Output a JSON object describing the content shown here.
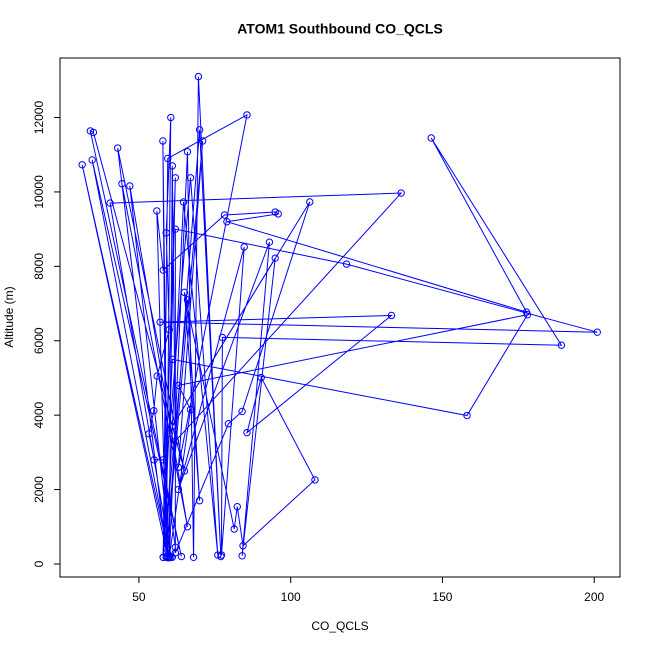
{
  "chart_data": {
    "type": "line",
    "title": "ATOM1 Southbound CO_QCLS",
    "x_label": "CO_QCLS",
    "y_label": "Altitude (m)",
    "x": [
      59.5,
      60,
      61,
      62,
      58,
      55,
      53.3,
      54.9,
      56,
      60,
      59,
      60.5,
      59,
      57.9,
      59.5,
      31.3,
      60,
      34.6,
      64,
      34,
      35,
      65,
      43,
      59,
      44.4,
      66,
      47,
      60.5,
      40.5,
      136.4,
      62,
      61,
      60,
      66,
      68,
      69.6,
      77,
      70,
      59,
      71,
      63,
      85.6,
      59.5,
      58,
      62,
      60,
      67,
      76,
      64.7,
      59,
      55.9,
      58,
      78.2,
      94.9,
      95.9,
      79,
      177.7,
      146.3,
      189.2,
      77.5,
      77.2,
      84.7,
      63,
      93,
      84,
      94.9,
      61,
      106.3,
      84,
      79.5,
      62,
      62,
      118.4,
      201,
      57,
      133.2,
      85.6,
      90.3,
      108,
      84.3,
      82.4,
      81.4,
      65,
      70,
      66,
      58,
      61,
      158.1,
      178,
      63,
      67,
      60
    ],
    "values": [
      170,
      200,
      180,
      450,
      2800,
      2800,
      3500,
      4120,
      5050,
      6300,
      8900,
      12000,
      180,
      11370,
      190,
      10730,
      220,
      10860,
      200,
      11640,
      11600,
      2500,
      11180,
      300,
      10220,
      1000,
      10160,
      180,
      9700,
      9970,
      3300,
      10700,
      170,
      11080,
      180,
      13100,
      200,
      11670,
      200,
      11370,
      2600,
      12070,
      10900,
      180,
      10380,
      3500,
      10380,
      240,
      9730,
      400,
      9490,
      7900,
      9380,
      9460,
      9410,
      9200,
      6770,
      11450,
      5880,
      6090,
      240,
      8520,
      2000,
      8650,
      220,
      8220,
      3700,
      9730,
      4100,
      3770,
      300,
      9000,
      8060,
      6230,
      6500,
      6680,
      3530,
      5010,
      2260,
      490,
      1540,
      940,
      7300,
      1700,
      7100,
      180,
      5500,
      3990,
      6700,
      4800,
      4150,
      190
    ],
    "color": "#0000ff",
    "xlim": [
      24,
      208.5
    ],
    "ylim": [
      -350,
      13600
    ],
    "xticks": [
      50,
      100,
      150,
      200
    ],
    "yticks": [
      0,
      2000,
      4000,
      6000,
      8000,
      10000,
      12000
    ]
  }
}
